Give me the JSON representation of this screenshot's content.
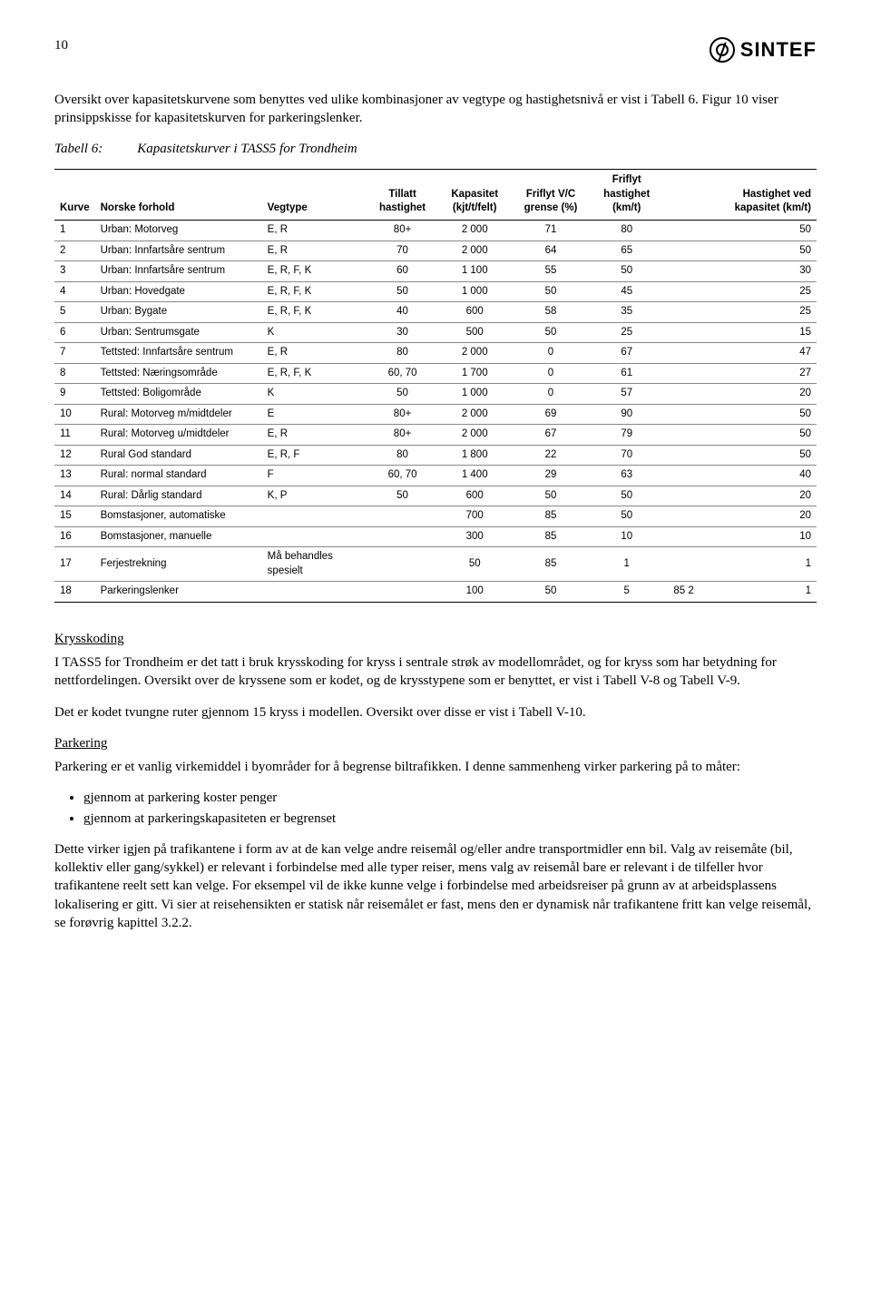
{
  "page_number": "10",
  "logo_text": "SINTEF",
  "intro_paragraph": "Oversikt over kapasitetskurvene som benyttes ved ulike kombinasjoner av vegtype og hastighetsnivå er vist i Tabell 6. Figur 10 viser prinsippskisse for kapasitetskurven for parkeringslenker.",
  "table_caption_label": "Tabell 6:",
  "table_caption_text": "Kapasitetskurver i TASS5 for Trondheim",
  "table": {
    "columns": [
      {
        "key": "kurve",
        "label": "Kurve",
        "align": "left",
        "width": "5%"
      },
      {
        "key": "norske",
        "label": "Norske forhold",
        "align": "left",
        "width": "22%"
      },
      {
        "key": "vegtype",
        "label": "Vegtype",
        "align": "left",
        "width": "14%"
      },
      {
        "key": "tillatt",
        "label": "Tillatt hastighet",
        "align": "center",
        "width": "9%"
      },
      {
        "key": "kapasitet",
        "label": "Kapasitet (kjt/t/felt)",
        "align": "center",
        "width": "10%"
      },
      {
        "key": "friflytvc",
        "label": "Friflyt V/C grense (%)",
        "align": "center",
        "width": "10%"
      },
      {
        "key": "friflyth",
        "label": "Friflyt hastighet (km/t)",
        "align": "center",
        "width": "10%"
      },
      {
        "key": "extra",
        "label": "",
        "align": "center",
        "width": "5%"
      },
      {
        "key": "hvk",
        "label": "Hastighet ved kapasitet (km/t)",
        "align": "right",
        "width": "15%"
      }
    ],
    "rows": [
      [
        "1",
        "Urban: Motorveg",
        "E, R",
        "80+",
        "2 000",
        "71",
        "80",
        "",
        "50"
      ],
      [
        "2",
        "Urban: Innfartsåre sentrum",
        "E, R",
        "70",
        "2 000",
        "64",
        "65",
        "",
        "50"
      ],
      [
        "3",
        "Urban: Innfartsåre sentrum",
        "E, R, F, K",
        "60",
        "1 100",
        "55",
        "50",
        "",
        "30"
      ],
      [
        "4",
        "Urban: Hovedgate",
        "E, R, F, K",
        "50",
        "1 000",
        "50",
        "45",
        "",
        "25"
      ],
      [
        "5",
        "Urban: Bygate",
        "E, R, F, K",
        "40",
        "600",
        "58",
        "35",
        "",
        "25"
      ],
      [
        "6",
        "Urban: Sentrumsgate",
        "K",
        "30",
        "500",
        "50",
        "25",
        "",
        "15"
      ],
      [
        "7",
        "Tettsted: Innfartsåre sentrum",
        "E, R",
        "80",
        "2 000",
        "0",
        "67",
        "",
        "47"
      ],
      [
        "8",
        "Tettsted: Næringsområde",
        "E, R, F, K",
        "60, 70",
        "1 700",
        "0",
        "61",
        "",
        "27"
      ],
      [
        "9",
        "Tettsted: Boligområde",
        "K",
        "50",
        "1 000",
        "0",
        "57",
        "",
        "20"
      ],
      [
        "10",
        "Rural: Motorveg m/midtdeler",
        "E",
        "80+",
        "2 000",
        "69",
        "90",
        "",
        "50"
      ],
      [
        "11",
        "Rural: Motorveg u/midtdeler",
        "E, R",
        "80+",
        "2 000",
        "67",
        "79",
        "",
        "50"
      ],
      [
        "12",
        "Rural God standard",
        "E, R, F",
        "80",
        "1 800",
        "22",
        "70",
        "",
        "50"
      ],
      [
        "13",
        "Rural: normal standard",
        "F",
        "60, 70",
        "1 400",
        "29",
        "63",
        "",
        "40"
      ],
      [
        "14",
        "Rural: Dårlig standard",
        "K, P",
        "50",
        "600",
        "50",
        "50",
        "",
        "20"
      ],
      [
        "15",
        "Bomstasjoner, automatiske",
        "",
        "",
        "700",
        "85",
        "50",
        "",
        "20"
      ],
      [
        "16",
        "Bomstasjoner, manuelle",
        "",
        "",
        "300",
        "85",
        "10",
        "",
        "10"
      ],
      [
        "17",
        "Ferjestrekning",
        "Må behandles spesielt",
        "",
        "50",
        "85",
        "1",
        "",
        "1"
      ],
      [
        "18",
        "Parkeringslenker",
        "",
        "",
        "100",
        "50",
        "5",
        "85   2",
        "1"
      ]
    ]
  },
  "sections": {
    "krysskoding": {
      "title": "Krysskoding",
      "p1": "I TASS5 for Trondheim er det tatt i bruk krysskoding for kryss i sentrale strøk av modellområdet, og for kryss som har betydning for nettfordelingen. Oversikt over de kryssene som er kodet, og de krysstypene som er benyttet, er vist i Tabell V-8 og Tabell V-9.",
      "p2": "Det er kodet tvungne ruter gjennom 15 kryss i modellen. Oversikt over disse er vist i Tabell V-10."
    },
    "parkering": {
      "title": "Parkering",
      "p1": "Parkering er et vanlig virkemiddel i byområder for å begrense biltrafikken. I denne sammenheng virker parkering på to måter:",
      "bullets": [
        "gjennom at parkering koster penger",
        "gjennom at parkeringskapasiteten er begrenset"
      ],
      "p2": "Dette virker igjen på trafikantene i form av at de kan velge andre reisemål og/eller andre transportmidler enn bil. Valg av reisemåte (bil, kollektiv eller gang/sykkel) er relevant i forbindelse med alle typer reiser, mens valg av reisemål bare er relevant i de tilfeller hvor trafikantene reelt sett kan velge. For eksempel vil de ikke kunne velge i forbindelse med arbeidsreiser på grunn av at arbeidsplassens lokalisering er gitt. Vi sier at reisehensikten er statisk når reisemålet er fast, mens den er dynamisk når trafikantene fritt kan velge reisemål, se forøvrig kapittel 3.2.2."
    }
  }
}
